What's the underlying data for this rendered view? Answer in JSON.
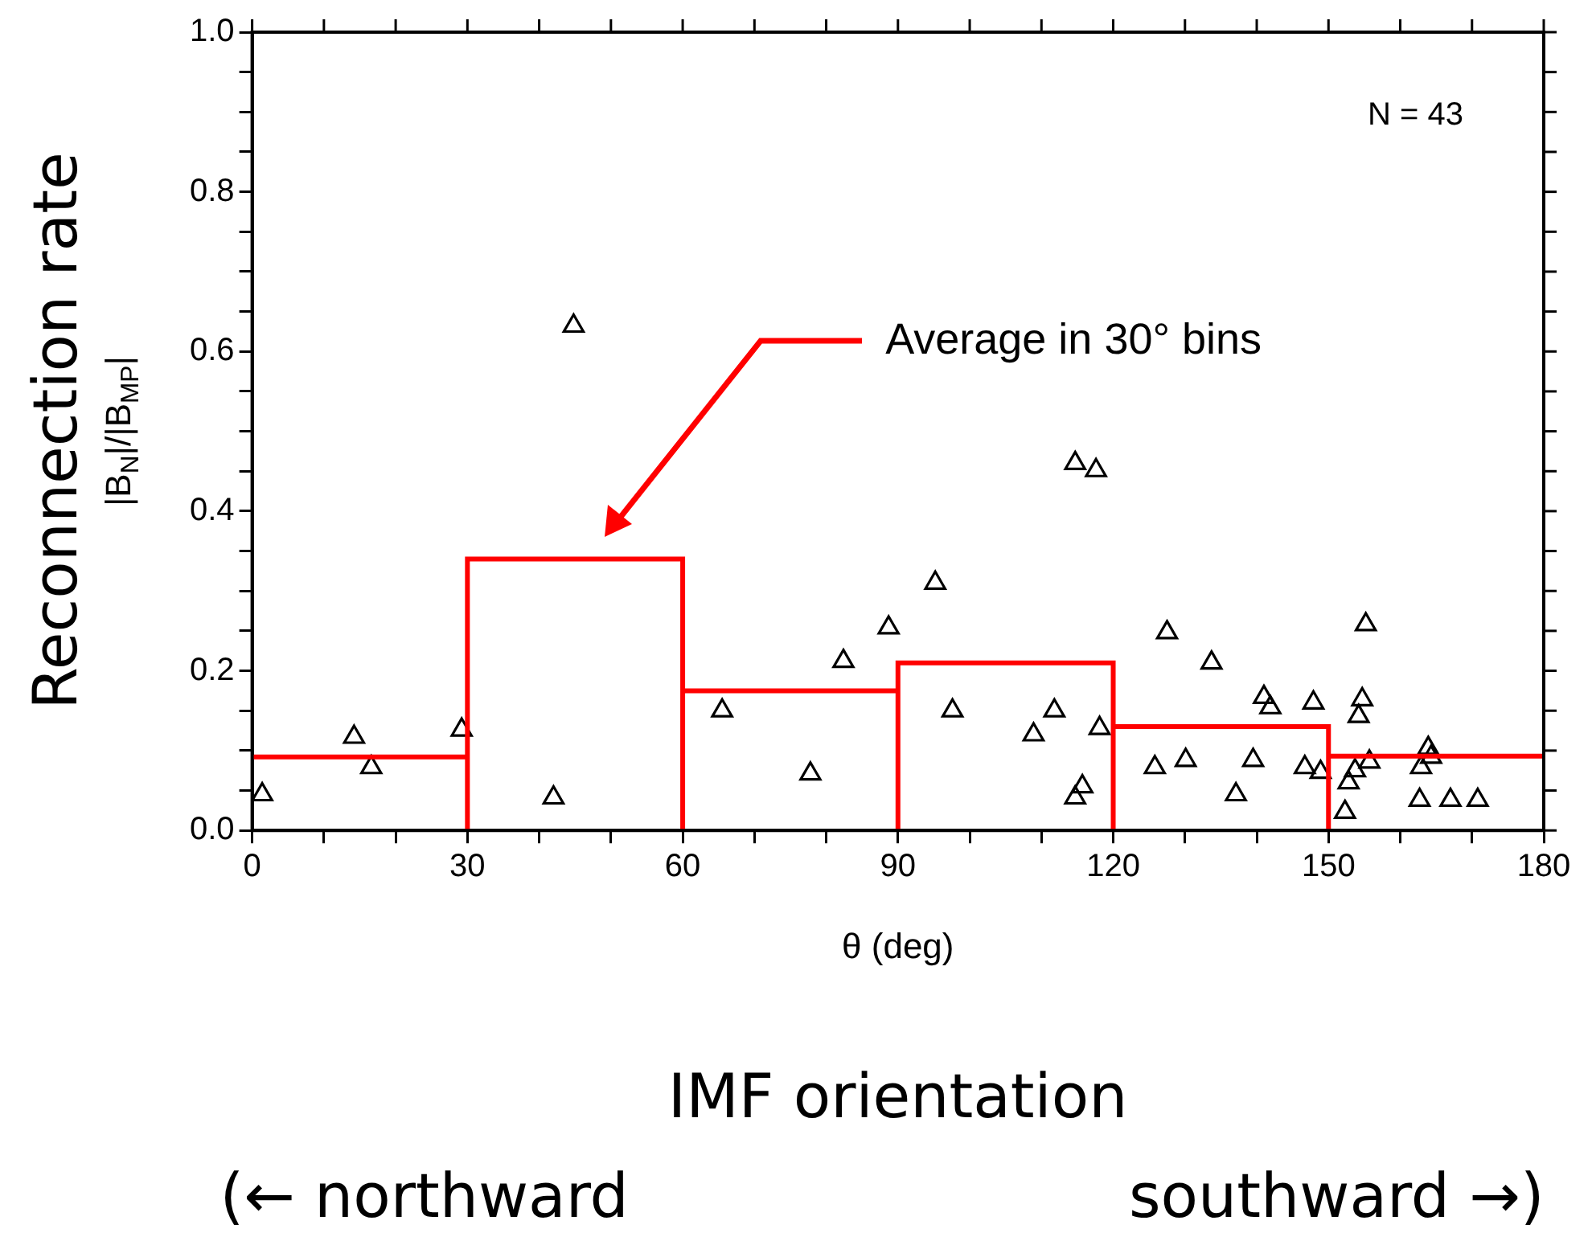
{
  "chart_data": {
    "type": "scatter",
    "xlabel": "θ (deg)",
    "ylabel": "|B$_{N}$|/|B$_{MP}$|",
    "annotations": [
      "N = 43",
      "Average in 30° bins",
      "Reconnection rate",
      "IMF orientation",
      "(← northward",
      "southward →)"
    ],
    "xlim": [
      0,
      180
    ],
    "xticks": [
      0,
      {
        "value": 10,
        "label": null
      },
      {
        "value": 20,
        "label": null
      },
      30,
      {
        "value": 40,
        "label": null
      },
      {
        "value": 50,
        "label": null
      },
      60,
      {
        "value": 70,
        "label": null
      },
      {
        "value": 80,
        "label": null
      },
      90,
      {
        "value": 100,
        "label": null
      },
      {
        "value": 110,
        "label": null
      },
      120,
      {
        "value": 130,
        "label": null
      },
      {
        "value": 140,
        "label": null
      },
      150,
      {
        "value": 160,
        "label": null
      },
      {
        "value": 170,
        "label": null
      },
      180
    ],
    "ylim": [
      0,
      1
    ],
    "yticks": [
      {
        "value": 0,
        "label": "0.0"
      },
      {
        "value": 0.05,
        "label": null
      },
      {
        "value": 0.1,
        "label": null
      },
      {
        "value": 0.15,
        "label": null
      },
      0.2,
      {
        "value": 0.25,
        "label": null
      },
      {
        "value": 0.3,
        "label": null
      },
      {
        "value": 0.35,
        "label": null
      },
      0.4,
      {
        "value": 0.45,
        "label": null
      },
      {
        "value": 0.5,
        "label": null
      },
      {
        "value": 0.55,
        "label": null
      },
      0.6,
      {
        "value": 0.65,
        "label": null
      },
      {
        "value": 0.7,
        "label": null
      },
      {
        "value": 0.75,
        "label": null
      },
      0.8,
      {
        "value": 0.85,
        "label": null
      },
      {
        "value": 0.9,
        "label": null
      },
      {
        "value": 0.95,
        "label": null
      },
      {
        "value": 1,
        "label": "1.0"
      }
    ],
    "grid": false,
    "legend": false,
    "series": [
      {
        "type": "histogram",
        "color": "#ff0000",
        "bins": [
          0,
          30,
          60,
          90,
          120,
          150,
          180
        ],
        "values": [
          0.092,
          0.34,
          0.175,
          0.21,
          0.13,
          0.093
        ]
      },
      {
        "type": "scatter",
        "color": "#000000",
        "marker": "triangle",
        "x": [
          1.4,
          14.2,
          16.6,
          29.2,
          42,
          44.8,
          65.5,
          77.8,
          82.4,
          88.7,
          95.2,
          97.6,
          108.9,
          111.8,
          114.7,
          117.6,
          114.7,
          115.7,
          118.1,
          125.8,
          127.5,
          130.1,
          133.7,
          137.1,
          139.5,
          141,
          141.9,
          147.9,
          146.7,
          148.9,
          152.3,
          152.8,
          153.7,
          155.2,
          154.7,
          154.2,
          155.7,
          162.7,
          162.9,
          163.9,
          164.3,
          167,
          170.8
        ],
        "values": [
          0.045,
          0.117,
          0.079,
          0.126,
          0.041,
          0.632,
          0.15,
          0.071,
          0.212,
          0.254,
          0.31,
          0.15,
          0.12,
          0.15,
          0.46,
          0.451,
          0.041,
          0.055,
          0.128,
          0.079,
          0.248,
          0.088,
          0.21,
          0.045,
          0.088,
          0.167,
          0.154,
          0.16,
          0.079,
          0.073,
          0.023,
          0.06,
          0.075,
          0.258,
          0.164,
          0.143,
          0.086,
          0.038,
          0.079,
          0.103,
          0.092,
          0.038,
          0.038
        ]
      }
    ]
  }
}
